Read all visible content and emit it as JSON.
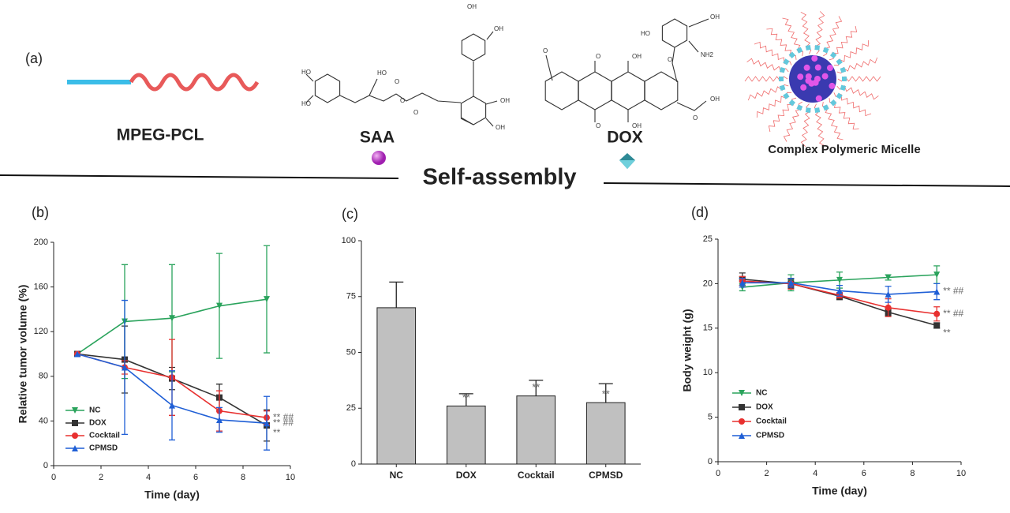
{
  "figure": {
    "panel_a": "(a)",
    "mpeg": "MPEG-PCL",
    "saa": "SAA",
    "dox": "DOX",
    "micelle": "Complex Polymeric Micelle",
    "assembly": "Self-assembly",
    "saa_atoms": [
      "HO",
      "HO",
      "HO",
      "O",
      "O",
      "O",
      "OH",
      "OH",
      "OH",
      "OH"
    ],
    "dox_atoms": [
      "O",
      "O",
      "OH",
      "O",
      "OH",
      "O",
      "HO",
      "NH2",
      "O",
      "OH",
      "OH"
    ]
  },
  "chart_data": [
    {
      "type": "line",
      "panel": "(b)",
      "xlabel": "Time (day)",
      "ylabel": "Relative tumor volume (%)",
      "x": [
        1,
        3,
        5,
        7,
        9
      ],
      "xlim": [
        0,
        10
      ],
      "xticks": [
        0,
        2,
        4,
        6,
        8,
        10
      ],
      "ylim": [
        0,
        200
      ],
      "yticks": [
        0,
        40,
        80,
        120,
        160,
        200
      ],
      "legend": "lower left",
      "series": [
        {
          "name": "NC",
          "color": "#2aa35c",
          "marker": "triangle-down",
          "values": [
            100,
            129,
            132,
            143,
            149
          ],
          "errors": [
            0,
            51,
            48,
            47,
            48
          ]
        },
        {
          "name": "DOX",
          "color": "#333333",
          "marker": "square",
          "values": [
            100,
            95,
            78,
            61,
            36
          ],
          "errors": [
            0,
            30,
            10,
            12,
            14
          ],
          "annotation": "**"
        },
        {
          "name": "Cocktail",
          "color": "#e8302f",
          "marker": "circle",
          "values": [
            100,
            88,
            79,
            49,
            43
          ],
          "errors": [
            0,
            6,
            34,
            18,
            6
          ],
          "annotation": "**  ##"
        },
        {
          "name": "CPMSD",
          "color": "#1f5fd6",
          "marker": "triangle-up",
          "values": [
            100,
            88,
            54,
            41,
            38
          ],
          "errors": [
            0,
            60,
            31,
            11,
            24
          ],
          "annotation": "**  ##"
        }
      ]
    },
    {
      "type": "bar",
      "panel": "(c)",
      "categories": [
        "NC",
        "DOX",
        "Cocktail",
        "CPMSD"
      ],
      "values": [
        70,
        26,
        30.5,
        27.5
      ],
      "errors": [
        11.5,
        5.5,
        7,
        8.5
      ],
      "annotations": [
        null,
        "**",
        "**",
        "**"
      ],
      "color": "#c0c0c0",
      "ylim": [
        0,
        100
      ],
      "yticks": [
        0,
        25,
        50,
        75,
        100
      ]
    },
    {
      "type": "line",
      "panel": "(d)",
      "xlabel": "Time (day)",
      "ylabel": "Body weight (g)",
      "x": [
        1,
        3,
        5,
        7,
        9
      ],
      "xlim": [
        0,
        10
      ],
      "xticks": [
        0,
        2,
        4,
        6,
        8,
        10
      ],
      "ylim": [
        0,
        25
      ],
      "yticks": [
        0,
        5,
        10,
        15,
        20,
        25
      ],
      "legend": "lower left",
      "series": [
        {
          "name": "NC",
          "color": "#2aa35c",
          "marker": "triangle-down",
          "values": [
            19.6,
            20.1,
            20.4,
            20.7,
            21
          ],
          "errors": [
            0.4,
            0.9,
            0.9,
            0.3,
            1
          ]
        },
        {
          "name": "DOX",
          "color": "#333333",
          "marker": "square",
          "values": [
            20.5,
            20,
            18.6,
            16.8,
            15.3
          ],
          "errors": [
            0.7,
            0.5,
            0.4,
            0.4,
            0.3
          ],
          "annotation": "**"
        },
        {
          "name": "Cocktail",
          "color": "#e8302f",
          "marker": "circle",
          "values": [
            20.3,
            20,
            18.7,
            17.3,
            16.6
          ],
          "errors": [
            0.5,
            0.6,
            0.3,
            1,
            0.8
          ],
          "annotation": "**  ##"
        },
        {
          "name": "CPMSD",
          "color": "#1f5fd6",
          "marker": "triangle-up",
          "values": [
            20.1,
            20.1,
            19.2,
            18.8,
            19.1
          ],
          "errors": [
            0.5,
            0.5,
            0.6,
            0.9,
            0.9
          ],
          "annotation": "**  ##"
        }
      ]
    }
  ]
}
